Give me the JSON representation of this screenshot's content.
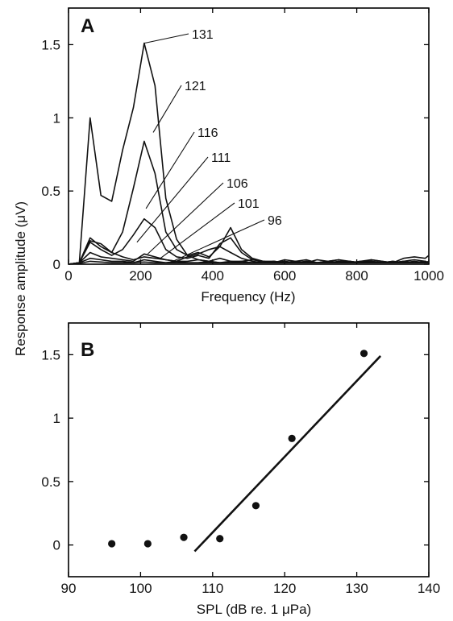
{
  "chart_data": [
    {
      "type": "line",
      "panel_label": "A",
      "xlabel": "Frequency (Hz)",
      "ylabel": "Response amplitude (μV)",
      "xlim": [
        0,
        1000
      ],
      "ylim": [
        0,
        1.75
      ],
      "xticks": [
        0,
        200,
        400,
        600,
        800,
        1000
      ],
      "yticks": [
        0,
        0.5,
        1,
        1.5
      ],
      "ytick_labels": [
        "0",
        "0.5",
        "1",
        "1.5"
      ],
      "grid": false,
      "series": [
        {
          "name": "131",
          "x": [
            0,
            30,
            60,
            90,
            120,
            150,
            180,
            210,
            240,
            270,
            300,
            330,
            360,
            390,
            420,
            450,
            480,
            510,
            540,
            570,
            600,
            630,
            660,
            690,
            720,
            750,
            780,
            810,
            840,
            870,
            900,
            930,
            960,
            990,
            1000
          ],
          "y": [
            0,
            0.01,
            1.0,
            0.47,
            0.43,
            0.78,
            1.07,
            1.51,
            1.22,
            0.45,
            0.17,
            0.06,
            0.03,
            0.02,
            0.04,
            0.02,
            0.02,
            0.03,
            0.02,
            0.01,
            0.03,
            0.02,
            0.01,
            0.03,
            0.02,
            0.03,
            0.02,
            0.01,
            0.03,
            0.02,
            0.01,
            0.04,
            0.05,
            0.04,
            0.06
          ]
        },
        {
          "name": "121",
          "x": [
            0,
            30,
            60,
            90,
            120,
            150,
            180,
            210,
            240,
            270,
            300,
            330,
            360,
            390,
            420,
            450,
            480,
            510,
            540,
            570,
            600,
            630,
            660,
            690,
            720,
            750,
            780,
            810,
            840,
            870,
            900,
            930,
            960,
            990,
            1000
          ],
          "y": [
            0,
            0.01,
            0.18,
            0.12,
            0.08,
            0.22,
            0.52,
            0.84,
            0.62,
            0.22,
            0.1,
            0.06,
            0.08,
            0.05,
            0.12,
            0.25,
            0.1,
            0.04,
            0.02,
            0.02,
            0.01,
            0.02,
            0.03,
            0.01,
            0.02,
            0.03,
            0.01,
            0.02,
            0.03,
            0.02,
            0.01,
            0.02,
            0.03,
            0.02,
            0.01
          ]
        },
        {
          "name": "116",
          "x": [
            0,
            30,
            60,
            90,
            120,
            150,
            180,
            210,
            240,
            270,
            300,
            330,
            360,
            390,
            420,
            450,
            480,
            510,
            540,
            570,
            600,
            630,
            660,
            690,
            720,
            750,
            780,
            810,
            840,
            870,
            900,
            930,
            960,
            990,
            1000
          ],
          "y": [
            0,
            0.01,
            0.15,
            0.1,
            0.06,
            0.1,
            0.2,
            0.31,
            0.25,
            0.1,
            0.05,
            0.04,
            0.06,
            0.04,
            0.14,
            0.18,
            0.08,
            0.03,
            0.02,
            0.01,
            0.02,
            0.01,
            0.02,
            0.01,
            0.02,
            0.01,
            0.02,
            0.01,
            0.02,
            0.01,
            0.02,
            0.01,
            0.02,
            0.01,
            0.02
          ]
        },
        {
          "name": "111",
          "x": [
            0,
            30,
            60,
            90,
            120,
            150,
            180,
            210,
            240,
            270,
            300,
            330,
            360,
            390,
            420,
            450,
            480,
            510,
            540,
            570,
            600,
            630,
            660,
            690,
            720,
            750,
            780,
            810,
            840,
            870,
            900,
            930,
            960,
            990,
            1000
          ],
          "y": [
            0,
            0.01,
            0.16,
            0.14,
            0.08,
            0.05,
            0.03,
            0.05,
            0.04,
            0.03,
            0.02,
            0.05,
            0.07,
            0.1,
            0.12,
            0.08,
            0.04,
            0.02,
            0.01,
            0.02,
            0.01,
            0.02,
            0.01,
            0.01,
            0.02,
            0.01,
            0.02,
            0.01,
            0.02,
            0.01,
            0.01,
            0.02,
            0.01,
            0.02,
            0.01
          ]
        },
        {
          "name": "106",
          "x": [
            0,
            30,
            60,
            90,
            120,
            150,
            180,
            210,
            240,
            270,
            300,
            330,
            360,
            390,
            420,
            450,
            480,
            510,
            540,
            570,
            600,
            630,
            660,
            690,
            720,
            750,
            780,
            810,
            840,
            870,
            900,
            930,
            960,
            990,
            1000
          ],
          "y": [
            0,
            0.01,
            0.08,
            0.05,
            0.04,
            0.03,
            0.02,
            0.07,
            0.05,
            0.03,
            0.02,
            0.02,
            0.03,
            0.02,
            0.01,
            0.02,
            0.01,
            0.01,
            0.02,
            0.01,
            0.01,
            0.02,
            0.01,
            0.01,
            0.02,
            0.01,
            0.01,
            0.02,
            0.01,
            0.01,
            0.02,
            0.01,
            0.01,
            0.02,
            0.01
          ]
        },
        {
          "name": "101",
          "x": [
            0,
            30,
            60,
            90,
            120,
            150,
            180,
            210,
            240,
            270,
            300,
            330,
            360,
            390,
            420,
            450,
            480,
            510,
            540,
            570,
            600,
            630,
            660,
            690,
            720,
            750,
            780,
            810,
            840,
            870,
            900,
            930,
            960,
            990,
            1000
          ],
          "y": [
            0,
            0.01,
            0.04,
            0.03,
            0.02,
            0.02,
            0.01,
            0.03,
            0.02,
            0.01,
            0.02,
            0.01,
            0.01,
            0.02,
            0.01,
            0.01,
            0.02,
            0.01,
            0.01,
            0.02,
            0.01,
            0.01,
            0.02,
            0.01,
            0.01,
            0.02,
            0.01,
            0.01,
            0.02,
            0.01,
            0.01,
            0.02,
            0.01,
            0.01,
            0.01
          ]
        },
        {
          "name": "96",
          "x": [
            0,
            30,
            60,
            90,
            120,
            150,
            180,
            210,
            240,
            270,
            300,
            330,
            360,
            390,
            420,
            450,
            480,
            510,
            540,
            570,
            600,
            630,
            660,
            690,
            720,
            750,
            780,
            810,
            840,
            870,
            900,
            930,
            960,
            990,
            1000
          ],
          "y": [
            0,
            0.005,
            0.02,
            0.015,
            0.01,
            0.01,
            0.01,
            0.015,
            0.01,
            0.01,
            0.01,
            0.01,
            0.01,
            0.01,
            0.01,
            0.01,
            0.01,
            0.01,
            0.01,
            0.01,
            0.01,
            0.01,
            0.01,
            0.01,
            0.01,
            0.01,
            0.01,
            0.01,
            0.01,
            0.01,
            0.01,
            0.01,
            0.01,
            0.01,
            0.01
          ]
        }
      ],
      "annotations": [
        {
          "text": "131",
          "at": [
            210,
            1.51
          ]
        },
        {
          "text": "121",
          "at": [
            235,
            0.9
          ]
        },
        {
          "text": "116",
          "at": [
            215,
            0.38
          ]
        },
        {
          "text": "111",
          "at": [
            190,
            0.15
          ]
        },
        {
          "text": "106",
          "at": [
            220,
            0.07
          ]
        },
        {
          "text": "101",
          "at": [
            255,
            0.04
          ]
        },
        {
          "text": "96",
          "at": [
            290,
            0.02
          ]
        }
      ]
    },
    {
      "type": "scatter",
      "panel_label": "B",
      "xlabel": "SPL (dB re. 1 μPa)",
      "ylabel": "Response amplitude (μV)",
      "xlim": [
        90,
        140
      ],
      "ylim": [
        -0.25,
        1.75
      ],
      "xticks": [
        90,
        100,
        110,
        120,
        130,
        140
      ],
      "yticks": [
        0,
        0.5,
        1,
        1.5
      ],
      "ytick_labels": [
        "0",
        "0.5",
        "1",
        "1.5"
      ],
      "grid": false,
      "points": {
        "x": [
          96,
          101,
          106,
          111,
          116,
          121,
          131
        ],
        "y": [
          0.01,
          0.01,
          0.06,
          0.05,
          0.31,
          0.84,
          1.51
        ]
      },
      "fit_line": {
        "x": [
          107.5,
          133.3
        ],
        "y": [
          -0.05,
          1.49
        ]
      }
    }
  ]
}
